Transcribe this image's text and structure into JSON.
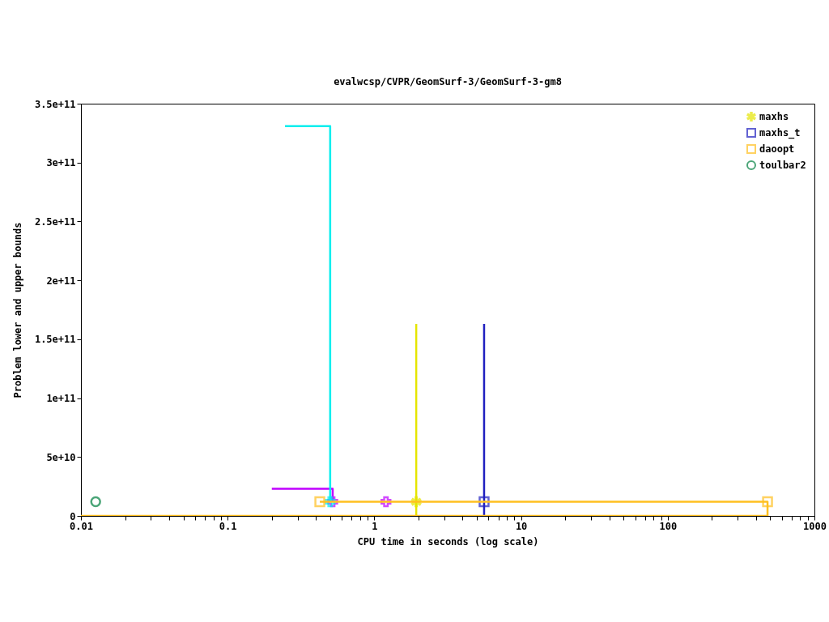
{
  "chart_data": {
    "type": "line",
    "title": "evalwcsp/CVPR/GeomSurf-3/GeomSurf-3-gm8",
    "xlabel": "CPU time in seconds (log scale)",
    "ylabel": "Problem lower and upper bounds",
    "log": "x",
    "grid": false,
    "legend": "top right",
    "xlim": [
      0.01,
      1000
    ],
    "ylim": [
      0,
      350000000000.0
    ],
    "xticks": [
      0.01,
      {
        "value": 0.02,
        "label": null
      },
      {
        "value": 0.03,
        "label": null
      },
      {
        "value": 0.04,
        "label": null
      },
      {
        "value": 0.05,
        "label": null
      },
      {
        "value": 0.06,
        "label": null
      },
      {
        "value": 0.07,
        "label": null
      },
      {
        "value": 0.08,
        "label": null
      },
      {
        "value": 0.09,
        "label": null
      },
      0.1,
      {
        "value": 0.2,
        "label": null
      },
      {
        "value": 0.3,
        "label": null
      },
      {
        "value": 0.4,
        "label": null
      },
      {
        "value": 0.5,
        "label": null
      },
      {
        "value": 0.6,
        "label": null
      },
      {
        "value": 0.7,
        "label": null
      },
      {
        "value": 0.8,
        "label": null
      },
      {
        "value": 0.9,
        "label": null
      },
      1,
      {
        "value": 2,
        "label": null
      },
      {
        "value": 3,
        "label": null
      },
      {
        "value": 4,
        "label": null
      },
      {
        "value": 5,
        "label": null
      },
      {
        "value": 6,
        "label": null
      },
      {
        "value": 7,
        "label": null
      },
      {
        "value": 8,
        "label": null
      },
      {
        "value": 9,
        "label": null
      },
      10,
      {
        "value": 20,
        "label": null
      },
      {
        "value": 30,
        "label": null
      },
      {
        "value": 40,
        "label": null
      },
      {
        "value": 50,
        "label": null
      },
      {
        "value": 60,
        "label": null
      },
      {
        "value": 70,
        "label": null
      },
      {
        "value": 80,
        "label": null
      },
      {
        "value": 90,
        "label": null
      },
      100,
      {
        "value": 200,
        "label": null
      },
      {
        "value": 300,
        "label": null
      },
      {
        "value": 400,
        "label": null
      },
      {
        "value": 500,
        "label": null
      },
      {
        "value": 600,
        "label": null
      },
      {
        "value": 700,
        "label": null
      },
      {
        "value": 800,
        "label": null
      },
      {
        "value": 900,
        "label": null
      },
      1000
    ],
    "yticks": [
      0,
      {
        "value": 50000000000.0,
        "label": "5e+10"
      },
      {
        "value": 100000000000.0,
        "label": "1e+11"
      },
      {
        "value": 150000000000.0,
        "label": "1.5e+11"
      },
      {
        "value": 200000000000.0,
        "label": "2e+11"
      },
      {
        "value": 250000000000.0,
        "label": "2.5e+11"
      },
      {
        "value": 300000000000.0,
        "label": "3e+11"
      },
      {
        "value": 350000000000.0,
        "label": "3.5e+11"
      }
    ],
    "series": [
      {
        "type": "line",
        "color": "#c000ff",
        "marker": "none",
        "x": [
          0.2,
          0.52,
          0.52
        ],
        "values": [
          23000000000.0,
          23000000000.0,
          12000000000.0
        ]
      },
      {
        "type": "scatter",
        "color": "#c000ff",
        "marker": "cross",
        "x": [
          0.52,
          1.2
        ],
        "values": [
          12000000000.0,
          12000000000.0
        ]
      },
      {
        "type": "line",
        "color": "#00eeee",
        "marker": "none",
        "x": [
          0.246,
          0.5,
          0.5
        ],
        "values": [
          331000000000.0,
          331000000000.0,
          12000000000.0
        ]
      },
      {
        "type": "scatter",
        "color": "#00eeee",
        "marker": "cross",
        "x": [
          0.5
        ],
        "values": [
          12000000000.0
        ]
      },
      {
        "type": "line",
        "color": "#e5e500",
        "marker": "none",
        "x": [
          1.93,
          1.93
        ],
        "values": [
          163000000000.0,
          0
        ]
      },
      {
        "type": "scatter",
        "name": "maxhs",
        "color": "#e5e500",
        "marker": "star",
        "x": [
          1.93
        ],
        "values": [
          12000000000.0
        ]
      },
      {
        "type": "line",
        "color": "#2020c0",
        "marker": "none",
        "x": [
          5.6,
          5.6
        ],
        "values": [
          163000000000.0,
          0
        ]
      },
      {
        "type": "scatter",
        "name": "maxhs_t",
        "color": "#2020c0",
        "marker": "square",
        "x": [
          5.6
        ],
        "values": [
          12000000000.0
        ]
      },
      {
        "type": "line",
        "color": "#ffc020",
        "marker": "none",
        "x": [
          0.01,
          479
        ],
        "values": [
          0,
          0
        ]
      },
      {
        "type": "line",
        "color": "#ffc020",
        "marker": "none",
        "x": [
          0.425,
          479,
          479
        ],
        "values": [
          12000000000.0,
          12000000000.0,
          0
        ]
      },
      {
        "type": "scatter",
        "name": "daoopt",
        "color": "#ffc020",
        "marker": "square",
        "x": [
          0.425,
          479
        ],
        "values": [
          12000000000.0,
          12000000000.0
        ]
      },
      {
        "type": "scatter",
        "name": "toulbar2",
        "color": "#008040",
        "marker": "circle",
        "x": [
          0.0126
        ],
        "values": [
          12000000000.0
        ]
      }
    ]
  }
}
